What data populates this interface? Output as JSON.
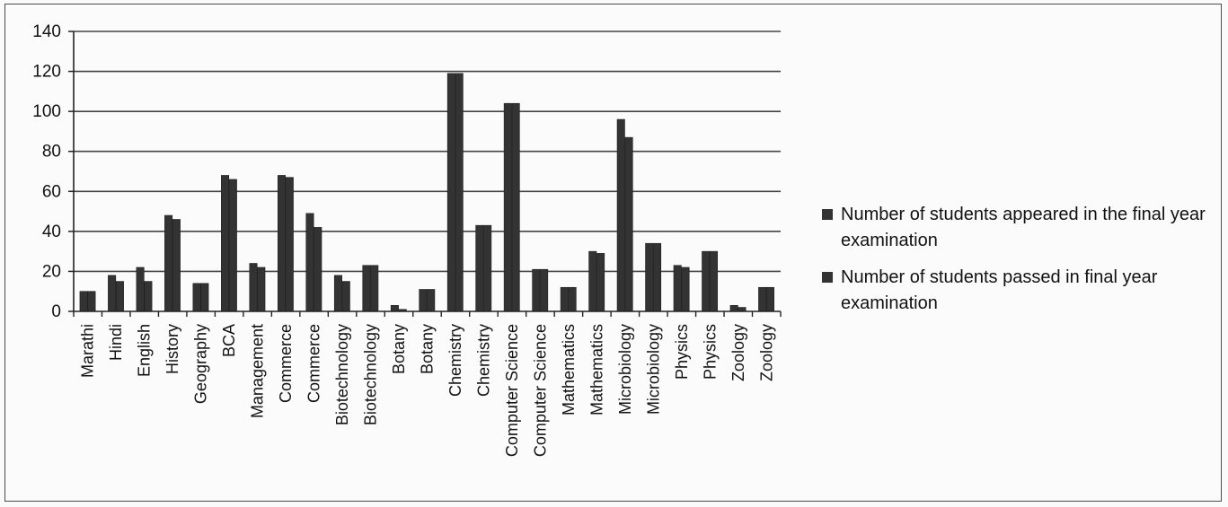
{
  "chart_data": {
    "type": "bar",
    "categories": [
      "Marathi",
      "Hindi",
      "English",
      "History",
      "Geography",
      "BCA",
      "Management",
      "Commerce",
      "Commerce",
      "Biotechnology",
      "Biotechnology",
      "Botany",
      "Botany",
      "Chemistry",
      "Chemistry",
      "Computer Science",
      "Computer Science",
      "Mathematics",
      "Mathematics",
      "Microbiology",
      "Microbiology",
      "Physics",
      "Physics",
      "Zoology",
      "Zoology"
    ],
    "series": [
      {
        "name": "Number of students appeared in the final year examination",
        "values": [
          10,
          18,
          22,
          48,
          14,
          68,
          24,
          68,
          49,
          18,
          23,
          3,
          11,
          119,
          43,
          104,
          21,
          12,
          30,
          96,
          34,
          23,
          30,
          3,
          12
        ]
      },
      {
        "name": "Number of students passed in final year examination",
        "values": [
          10,
          15,
          15,
          46,
          14,
          66,
          22,
          67,
          42,
          15,
          23,
          1,
          11,
          119,
          43,
          104,
          21,
          12,
          29,
          87,
          34,
          22,
          30,
          2,
          12
        ]
      }
    ],
    "yticks": [
      0,
      20,
      40,
      60,
      80,
      100,
      120,
      140
    ],
    "ylim": [
      0,
      140
    ],
    "grid": true,
    "legend_position": "right",
    "colors": {
      "bar": "#333333",
      "grid": "#444444",
      "axis": "#222222"
    }
  }
}
